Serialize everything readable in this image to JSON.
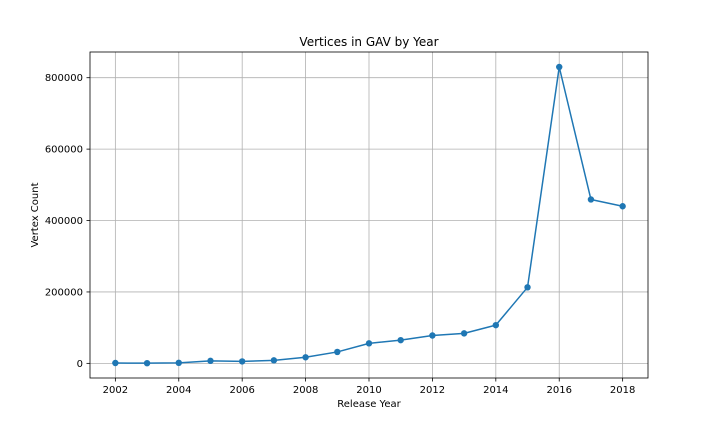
{
  "chart_data": {
    "type": "line",
    "title": "Vertices in GAV by Year",
    "xlabel": "Release Year",
    "ylabel": "Vertex Count",
    "x": [
      2002,
      2003,
      2004,
      2005,
      2006,
      2007,
      2008,
      2009,
      2010,
      2011,
      2012,
      2013,
      2014,
      2015,
      2016,
      2017,
      2018
    ],
    "series": [
      {
        "values": [
          1000,
          500,
          1500,
          7000,
          5500,
          8500,
          17000,
          32000,
          56000,
          65000,
          78000,
          84000,
          107000,
          213000,
          830000,
          459000,
          440000
        ],
        "color": "#1f77b4",
        "marker": "circle"
      }
    ],
    "xlim": [
      2001.2,
      2018.8
    ],
    "ylim": [
      -41000,
      872000
    ],
    "xticks": [
      2002,
      2004,
      2006,
      2008,
      2010,
      2012,
      2014,
      2016,
      2018
    ],
    "yticks": [
      0,
      200000,
      400000,
      600000,
      800000
    ],
    "grid": true
  }
}
